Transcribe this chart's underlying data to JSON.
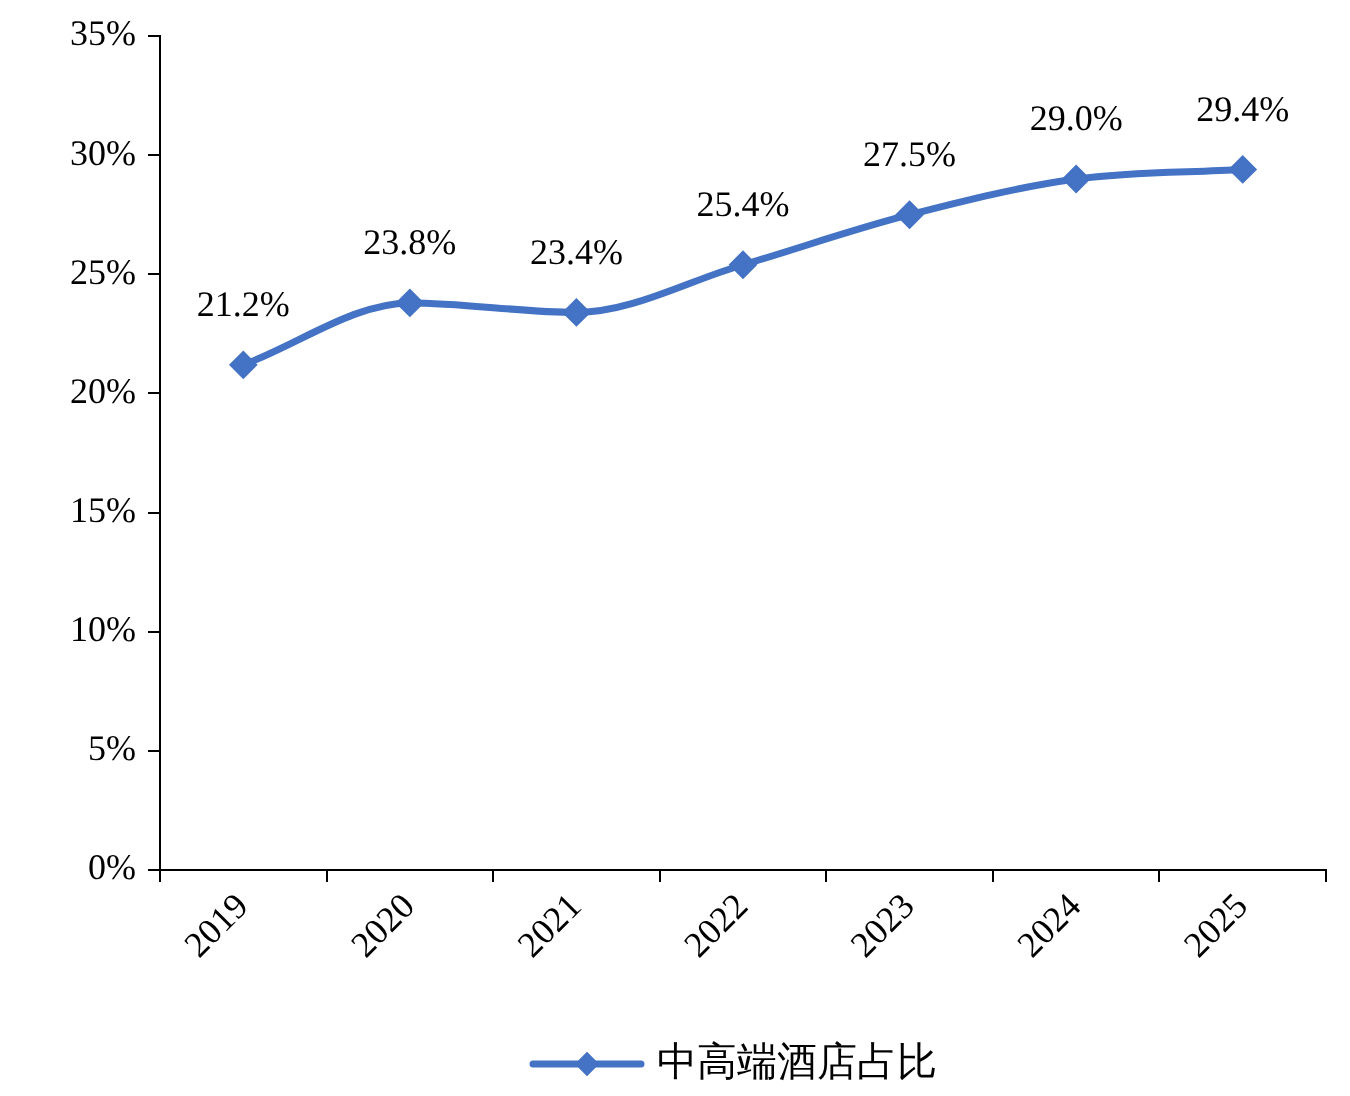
{
  "chart_data": {
    "type": "line",
    "categories": [
      "2019",
      "2020",
      "2021",
      "2022",
      "2023",
      "2024",
      "2025"
    ],
    "series": [
      {
        "name": "中高端酒店占比",
        "color": "#4472c4",
        "values": [
          21.2,
          23.8,
          23.4,
          25.4,
          27.5,
          29.0,
          29.4
        ],
        "value_labels": [
          "21.2%",
          "23.8%",
          "23.4%",
          "25.4%",
          "27.5%",
          "29.0%",
          "29.4%"
        ]
      }
    ],
    "ylim": [
      0,
      35
    ],
    "yticks": [
      {
        "value": 0,
        "label": "0%"
      },
      {
        "value": 5,
        "label": "5%"
      },
      {
        "value": 10,
        "label": "10%"
      },
      {
        "value": 15,
        "label": "15%"
      },
      {
        "value": 20,
        "label": "20%"
      },
      {
        "value": 25,
        "label": "25%"
      },
      {
        "value": 30,
        "label": "30%"
      },
      {
        "value": 35,
        "label": "35%"
      }
    ],
    "grid": false,
    "legend": "bottom",
    "marker": "diamond",
    "line_style": "solid"
  }
}
